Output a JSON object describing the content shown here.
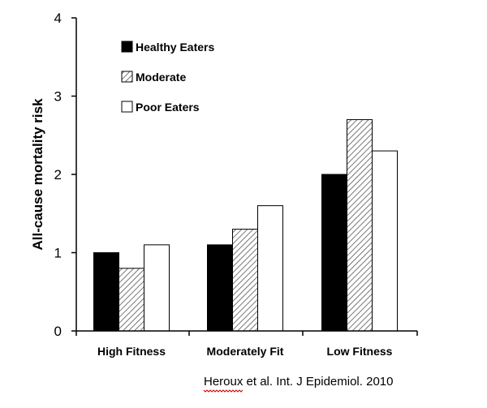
{
  "chart_data": {
    "type": "bar",
    "ylabel": "All-cause mortality risk",
    "categories": [
      "High Fitness",
      "Moderately Fit",
      "Low Fitness"
    ],
    "series": [
      {
        "name": "Healthy Eaters",
        "fill": "solid",
        "values": [
          1.0,
          1.1,
          2.0
        ]
      },
      {
        "name": "Moderate",
        "fill": "hatched",
        "values": [
          0.8,
          1.3,
          2.7
        ]
      },
      {
        "name": "Poor Eaters",
        "fill": "white",
        "values": [
          1.1,
          1.6,
          2.3
        ]
      }
    ],
    "ylim": [
      0,
      4
    ],
    "yticks": [
      0,
      1,
      2,
      3,
      4
    ],
    "grid": false,
    "legend_position": "top-left"
  },
  "citation": {
    "author": "Heroux",
    "rest": " et al. Int. J Epidemiol. 2010"
  },
  "colors": {
    "bar_solid": "#000000",
    "bar_white": "#ffffff",
    "hatch_line": "#555555",
    "axis": "#000000",
    "citation_underline": "#cc0000"
  }
}
